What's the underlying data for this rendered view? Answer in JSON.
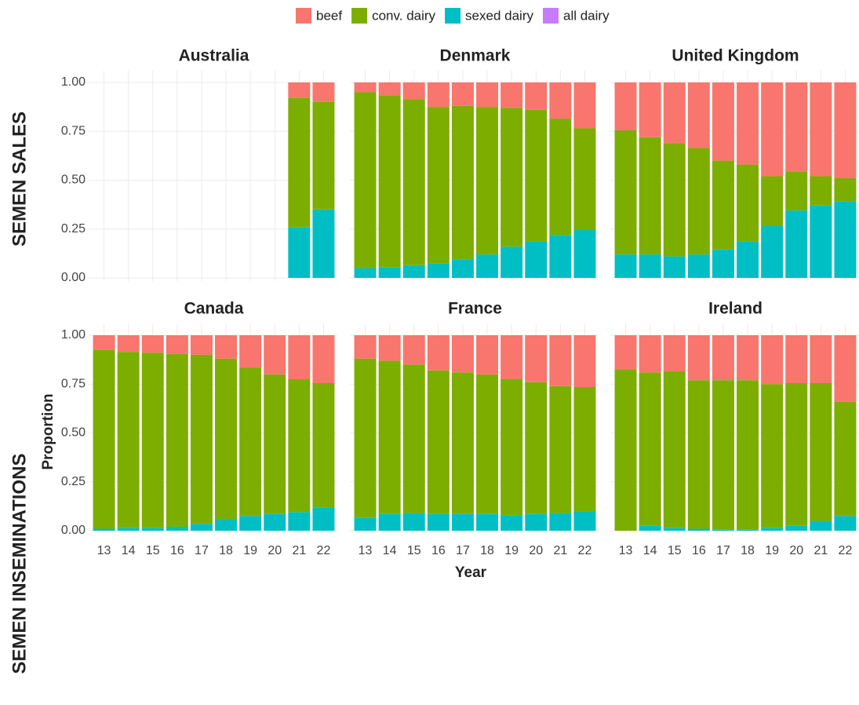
{
  "legend": [
    {
      "name": "beef",
      "color": "#F8766D"
    },
    {
      "name": "conv. dairy",
      "color": "#7CAE00"
    },
    {
      "name": "sexed dairy",
      "color": "#00BFC4"
    },
    {
      "name": "all dairy",
      "color": "#C77CFF"
    }
  ],
  "row_labels": [
    "SEMEN SALES",
    "SEMEN INSEMINATIONS"
  ],
  "x_label": "Year",
  "y_label": "Proportion",
  "chart_data": [
    {
      "type": "bar",
      "stacked": true,
      "title": "Australia",
      "grid": true,
      "categories": [
        null,
        null,
        null,
        null,
        null,
        null,
        null,
        null,
        null,
        null
      ],
      "ylim": [
        0,
        1
      ],
      "yticks": [
        {
          "value": 0,
          "label": "0.00"
        },
        {
          "value": 0.25,
          "label": "0.25"
        },
        {
          "value": 0.5,
          "label": "0.50"
        },
        {
          "value": 0.75,
          "label": "0.75"
        },
        {
          "value": 1,
          "label": "1.00"
        }
      ],
      "series": [
        {
          "values": [
            null,
            null,
            null,
            null,
            null,
            null,
            null,
            null,
            0.08,
            0.1
          ]
        },
        {
          "values": [
            null,
            null,
            null,
            null,
            null,
            null,
            null,
            null,
            0.66,
            0.55
          ]
        },
        {
          "values": [
            null,
            null,
            null,
            null,
            null,
            null,
            null,
            null,
            0.26,
            0.35
          ]
        }
      ]
    },
    {
      "type": "bar",
      "stacked": true,
      "title": "Denmark",
      "grid": true,
      "categories": [
        null,
        null,
        null,
        null,
        null,
        null,
        null,
        null,
        null,
        null
      ],
      "ylim": [
        0,
        1
      ],
      "series": [
        {
          "values": [
            0.05,
            0.065,
            0.085,
            0.125,
            0.12,
            0.125,
            0.13,
            0.14,
            0.185,
            0.235
          ]
        },
        {
          "values": [
            0.9,
            0.88,
            0.85,
            0.8,
            0.785,
            0.755,
            0.71,
            0.675,
            0.595,
            0.52
          ]
        },
        {
          "values": [
            0.05,
            0.055,
            0.065,
            0.075,
            0.095,
            0.12,
            0.16,
            0.185,
            0.22,
            0.245
          ]
        }
      ]
    },
    {
      "type": "bar",
      "stacked": true,
      "title": "United Kingdom",
      "grid": true,
      "categories": [
        null,
        null,
        null,
        null,
        null,
        null,
        null,
        null,
        null,
        null
      ],
      "ylim": [
        0,
        1
      ],
      "series": [
        {
          "values": [
            0.245,
            0.28,
            0.31,
            0.335,
            0.4,
            0.42,
            0.48,
            0.455,
            0.48,
            0.49
          ]
        },
        {
          "values": [
            0.635,
            0.6,
            0.58,
            0.545,
            0.455,
            0.395,
            0.255,
            0.2,
            0.15,
            0.12
          ]
        },
        {
          "values": [
            0.12,
            0.12,
            0.11,
            0.12,
            0.145,
            0.185,
            0.265,
            0.345,
            0.37,
            0.39
          ]
        }
      ]
    },
    {
      "type": "bar",
      "stacked": true,
      "title": "Canada",
      "grid": true,
      "categories": [
        "13",
        "14",
        "15",
        "16",
        "17",
        "18",
        "19",
        "20",
        "21",
        "22"
      ],
      "ylim": [
        0,
        1
      ],
      "yticks": [
        {
          "value": 0,
          "label": "0.00"
        },
        {
          "value": 0.25,
          "label": "0.25"
        },
        {
          "value": 0.5,
          "label": "0.50"
        },
        {
          "value": 0.75,
          "label": "0.75"
        },
        {
          "value": 1,
          "label": "1.00"
        }
      ],
      "series": [
        {
          "values": [
            0.075,
            0.085,
            0.09,
            0.095,
            0.1,
            0.12,
            0.165,
            0.2,
            0.225,
            0.245
          ]
        },
        {
          "values": [
            0.915,
            0.9,
            0.895,
            0.885,
            0.865,
            0.82,
            0.76,
            0.715,
            0.68,
            0.635
          ]
        },
        {
          "values": [
            0.01,
            0.015,
            0.015,
            0.02,
            0.035,
            0.06,
            0.075,
            0.085,
            0.095,
            0.12
          ]
        }
      ]
    },
    {
      "type": "bar",
      "stacked": true,
      "title": "France",
      "grid": true,
      "categories": [
        "13",
        "14",
        "15",
        "16",
        "17",
        "18",
        "19",
        "20",
        "21",
        "22"
      ],
      "ylim": [
        0,
        1
      ],
      "series": [
        {
          "values": [
            0.12,
            0.13,
            0.15,
            0.18,
            0.19,
            0.2,
            0.225,
            0.24,
            0.26,
            0.265
          ]
        },
        {
          "values": [
            0.815,
            0.785,
            0.76,
            0.735,
            0.725,
            0.715,
            0.695,
            0.675,
            0.65,
            0.635
          ]
        },
        {
          "values": [
            0.065,
            0.085,
            0.09,
            0.085,
            0.085,
            0.085,
            0.08,
            0.085,
            0.09,
            0.1
          ]
        }
      ]
    },
    {
      "type": "bar",
      "stacked": true,
      "title": "Ireland",
      "grid": true,
      "categories": [
        "13",
        "14",
        "15",
        "16",
        "17",
        "18",
        "19",
        "20",
        "21",
        "22"
      ],
      "ylim": [
        0,
        1
      ],
      "series": [
        {
          "values": [
            0.175,
            0.19,
            0.185,
            0.23,
            0.23,
            0.23,
            0.25,
            0.245,
            0.245,
            0.34
          ]
        },
        {
          "values": [
            0.825,
            0.785,
            0.8,
            0.76,
            0.765,
            0.765,
            0.735,
            0.73,
            0.705,
            0.585
          ]
        },
        {
          "values": [
            0,
            0.025,
            0.015,
            0.01,
            0.005,
            0.005,
            0.015,
            0.025,
            0.05,
            0.075
          ]
        }
      ]
    }
  ]
}
